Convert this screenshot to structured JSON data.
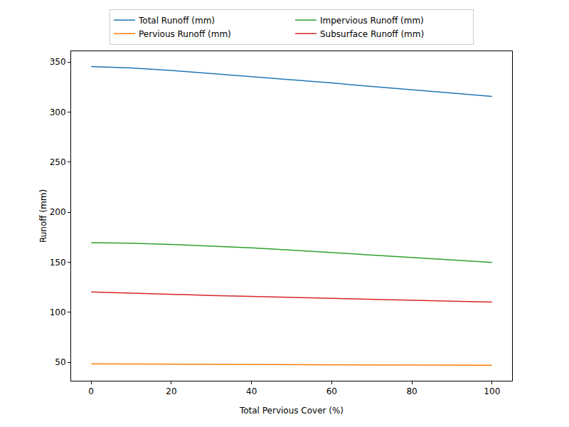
{
  "chart_data": {
    "type": "line",
    "x_label": "Total Pervious Cover (%)",
    "y_label": "Runoff (mm)",
    "x": [
      0,
      10,
      20,
      30,
      40,
      50,
      60,
      70,
      80,
      90,
      100
    ],
    "series": [
      {
        "name": "Total Runoff (mm)",
        "color": "#1f77b4",
        "values": [
          345.5,
          344,
          341.5,
          338.5,
          335.5,
          332,
          329,
          325.5,
          322.5,
          319,
          315.5
        ]
      },
      {
        "name": "Pervious Runoff (mm)",
        "color": "#ff7f0e",
        "values": [
          48.5,
          48.4,
          48.3,
          48.2,
          48.1,
          48,
          47.8,
          47.6,
          47.4,
          47.2,
          47
        ]
      },
      {
        "name": "Impervious Runoff (mm)",
        "color": "#2ca02c",
        "values": [
          169.5,
          169,
          167.8,
          166.2,
          164.3,
          162,
          159.7,
          157.2,
          154.8,
          152.3,
          149.8
        ]
      },
      {
        "name": "Subsurface Runoff (mm)",
        "color": "#d62728",
        "values": [
          120.3,
          119,
          117.8,
          116.8,
          115.8,
          114.9,
          114,
          113,
          112,
          111,
          110.2
        ]
      }
    ],
    "xlim": [
      -5,
      105
    ],
    "ylim": [
      31.6,
      360.7
    ],
    "xticks": [
      0,
      20,
      40,
      60,
      80,
      100
    ],
    "yticks": [
      50,
      100,
      150,
      200,
      250,
      300,
      350
    ],
    "grid": false,
    "legend": "upper center"
  }
}
